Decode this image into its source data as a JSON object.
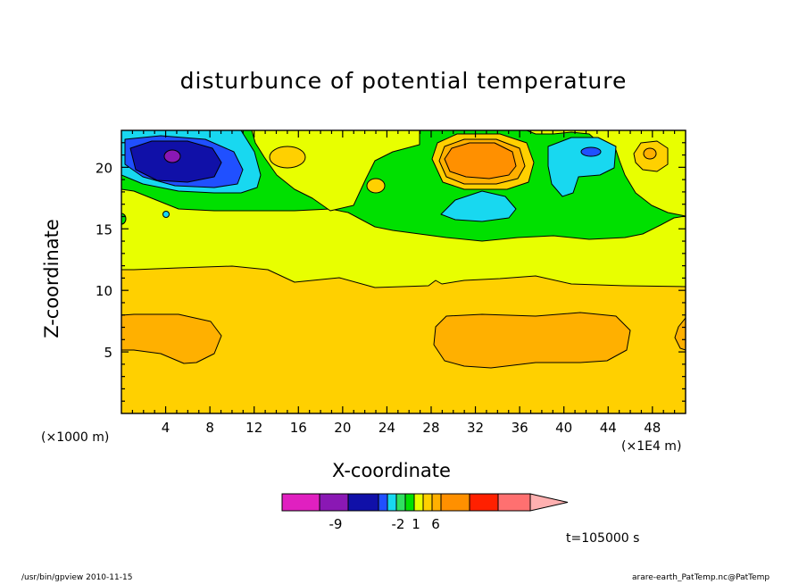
{
  "chart_data": {
    "type": "heatmap",
    "title": "disturbunce of potential temperature",
    "xlabel": "X-coordinate",
    "ylabel": "Z-coordinate",
    "x_unit_label": "(×1000 m)",
    "x_scale_label": "(×1E4 m)",
    "x_ticks": [
      4,
      8,
      12,
      16,
      20,
      24,
      28,
      32,
      36,
      40,
      44,
      48
    ],
    "y_ticks": [
      5,
      10,
      15,
      20
    ],
    "xlim": [
      0,
      51
    ],
    "ylim": [
      0,
      23
    ],
    "colorbar_labels": [
      {
        "label": "-9",
        "slot": 2
      },
      {
        "label": "-2",
        "slot": 5
      },
      {
        "label": "1",
        "slot": 7
      },
      {
        "label": "6",
        "slot": 9
      }
    ],
    "colorbar_colors": [
      "#e020c0",
      "#8a18b4",
      "#1010a8",
      "#2050ff",
      "#18d8f0",
      "#30e060",
      "#00e000",
      "#e8ff00",
      "#ffd000",
      "#ffb000",
      "#ff9000",
      "#ff2000",
      "#ff7070",
      "#ffb0b0"
    ],
    "time_label": "t=105000 s",
    "features": [
      {
        "kind": "negative-core",
        "x": 4.6,
        "z": 20.8,
        "value_level": -9
      },
      {
        "kind": "positive-core",
        "x": 32.0,
        "z": 20.6,
        "value_level": 6
      },
      {
        "kind": "warm-band",
        "z_range": [
          0,
          11.7
        ]
      },
      {
        "kind": "warmer-lobes",
        "z_range": [
          4,
          8
        ]
      }
    ]
  },
  "footer": {
    "left": "/usr/bin/gpview   2010-11-15",
    "right": "arare-earth_PatTemp.nc@PatTemp"
  }
}
